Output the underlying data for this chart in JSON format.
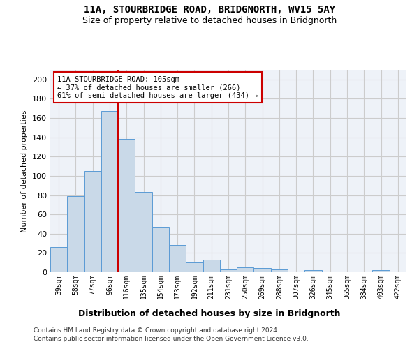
{
  "title1": "11A, STOURBRIDGE ROAD, BRIDGNORTH, WV15 5AY",
  "title2": "Size of property relative to detached houses in Bridgnorth",
  "xlabel": "Distribution of detached houses by size in Bridgnorth",
  "ylabel": "Number of detached properties",
  "categories": [
    "39sqm",
    "58sqm",
    "77sqm",
    "96sqm",
    "116sqm",
    "135sqm",
    "154sqm",
    "173sqm",
    "192sqm",
    "211sqm",
    "231sqm",
    "250sqm",
    "269sqm",
    "288sqm",
    "307sqm",
    "326sqm",
    "345sqm",
    "365sqm",
    "384sqm",
    "403sqm",
    "422sqm"
  ],
  "values": [
    26,
    79,
    105,
    167,
    138,
    83,
    47,
    28,
    10,
    13,
    3,
    5,
    4,
    3,
    0,
    2,
    1,
    1,
    0,
    2,
    0
  ],
  "bar_color": "#c9d9e8",
  "bar_edge_color": "#5b9bd5",
  "vline_pos": 3.5,
  "vline_color": "#cc0000",
  "annotation_text": "11A STOURBRIDGE ROAD: 105sqm\n← 37% of detached houses are smaller (266)\n61% of semi-detached houses are larger (434) →",
  "annotation_box_color": "#ffffff",
  "annotation_box_edge": "#cc0000",
  "ylim": [
    0,
    210
  ],
  "yticks": [
    0,
    20,
    40,
    60,
    80,
    100,
    120,
    140,
    160,
    180,
    200
  ],
  "grid_color": "#cccccc",
  "bg_color": "#eef2f8",
  "footer1": "Contains HM Land Registry data © Crown copyright and database right 2024.",
  "footer2": "Contains public sector information licensed under the Open Government Licence v3.0."
}
